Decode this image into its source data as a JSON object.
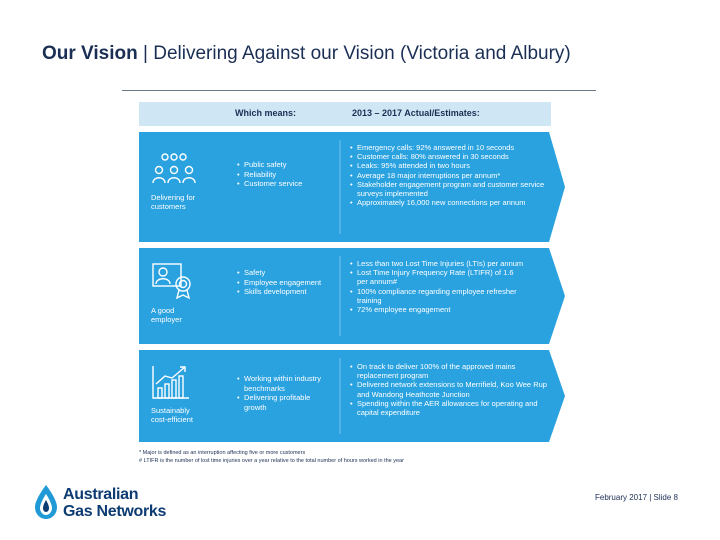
{
  "title": {
    "bold_part": "Our Vision",
    "separator": " | ",
    "rest": "Delivering Against our Vision (Victoria and Albury)"
  },
  "header": {
    "which_means": "Which means:",
    "years": "2013 – 2017 Actual/Estimates:"
  },
  "panels": [
    {
      "title_line1": "Delivering for",
      "title_line2": "customers",
      "icon": "people-icon",
      "which_means": [
        "Public safety",
        "Reliability",
        "Customer service"
      ],
      "actuals": [
        "Emergency calls: 92% answered in 10 seconds",
        "Customer calls: 80% answered in 30 seconds",
        "Leaks: 95% attended in two hours",
        "Average 18 major interruptions per annum*",
        "Stakeholder engagement program and customer service surveys implemented",
        "Approximately 16,000 new connections per annum"
      ]
    },
    {
      "title_line1": "A good",
      "title_line2": "employer",
      "icon": "certificate-icon",
      "which_means": [
        "Safety",
        "Employee engagement",
        "Skills development"
      ],
      "actuals": [
        "Less than two Lost Time Injuries (LTIs) per annum",
        "Lost Time Injury Frequency Rate (LTIFR) of 1.6 per annum#",
        "100% compliance regarding employee refresher training",
        "72% employee engagement"
      ]
    },
    {
      "title_line1": "Sustainably",
      "title_line2": "cost-efficient",
      "icon": "growth-chart-icon",
      "which_means": [
        "Working within industry benchmarks",
        "Delivering profitable growth"
      ],
      "actuals": [
        "On track to deliver 100% of the approved mains replacement program",
        "Delivered network extensions to Merrifield, Koo Wee Rup and Wandong Heathcote Junction",
        "Spending within the AER allowances for operating and capital expenditure"
      ]
    }
  ],
  "footnotes": {
    "f1": "* Major is defined as an interruption affecting five or more customers",
    "f2": "# LTIFR is the number of lost time injuries over a year relative to the total number of hours worked in the year"
  },
  "logo": {
    "line1": "Australian",
    "line2": "Gas Networks"
  },
  "slide_footer": "February 2017 | Slide 8",
  "colors": {
    "panel_blue": "#2aa2e0",
    "header_light": "#cfe6f4",
    "title_navy": "#1b2f55"
  }
}
